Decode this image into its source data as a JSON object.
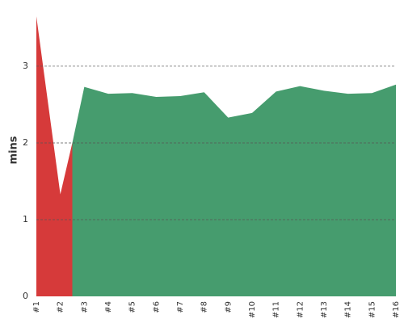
{
  "chart_data": {
    "type": "area",
    "y_label": "mins",
    "series": [
      {
        "color": "#d63a3a",
        "x": [
          1,
          2,
          2.5
        ],
        "values": [
          3.65,
          1.33,
          2.0
        ]
      },
      {
        "color": "#469c6e",
        "x": [
          2.5,
          3,
          4,
          5,
          6,
          7,
          8,
          9,
          10,
          11,
          12,
          13,
          14,
          15,
          16
        ],
        "values": [
          2.0,
          2.73,
          2.64,
          2.65,
          2.6,
          2.61,
          2.66,
          2.33,
          2.39,
          2.67,
          2.74,
          2.68,
          2.64,
          2.65,
          2.76
        ]
      }
    ],
    "xlim": [
      1,
      16
    ],
    "xticks": [
      {
        "value": 1,
        "label": "#1"
      },
      {
        "value": 2,
        "label": "#2"
      },
      {
        "value": 3,
        "label": "#3"
      },
      {
        "value": 4,
        "label": "#4"
      },
      {
        "value": 5,
        "label": "#5"
      },
      {
        "value": 6,
        "label": "#6"
      },
      {
        "value": 7,
        "label": "#7"
      },
      {
        "value": 8,
        "label": "#8"
      },
      {
        "value": 9,
        "label": "#9"
      },
      {
        "value": 10,
        "label": "#10"
      },
      {
        "value": 11,
        "label": "#11"
      },
      {
        "value": 12,
        "label": "#12"
      },
      {
        "value": 13,
        "label": "#13"
      },
      {
        "value": 14,
        "label": "#14"
      },
      {
        "value": 15,
        "label": "#15"
      },
      {
        "value": 16,
        "label": "#16"
      }
    ],
    "ylim": [
      0,
      3.81
    ],
    "yticks": [
      0,
      1,
      2,
      3
    ],
    "grid": true
  }
}
